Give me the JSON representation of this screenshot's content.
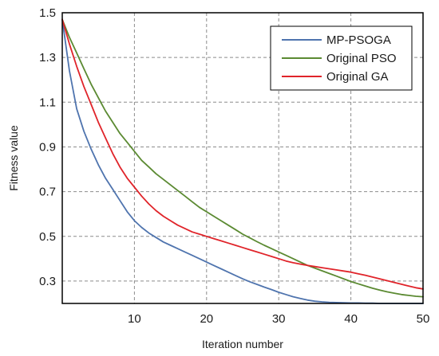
{
  "chart_data": {
    "type": "line",
    "title": "",
    "xlabel": "Iteration number",
    "ylabel": "Fitness value",
    "xlim": [
      0,
      50
    ],
    "ylim": [
      0.2,
      1.5
    ],
    "xticks": [
      10,
      20,
      30,
      40,
      50
    ],
    "xtick_labels": [
      "10",
      "20",
      "30",
      "40",
      "50"
    ],
    "yticks": [
      0.3,
      0.5,
      0.7,
      0.9,
      1.1,
      1.3,
      1.5
    ],
    "ytick_labels": [
      "0.3",
      "0.5",
      "0.7",
      "0.9",
      "1.1",
      "1.3",
      "1.5"
    ],
    "grid": true,
    "legend_position": "top-right",
    "x": [
      0,
      1,
      2,
      3,
      4,
      5,
      6,
      7,
      8,
      9,
      10,
      11,
      12,
      13,
      14,
      15,
      16,
      17,
      18,
      19,
      20,
      21,
      22,
      23,
      24,
      25,
      26,
      27,
      28,
      29,
      30,
      31,
      32,
      33,
      34,
      35,
      36,
      37,
      38,
      39,
      40,
      41,
      42,
      43,
      44,
      45,
      46,
      47,
      48,
      49,
      50
    ],
    "series": [
      {
        "name": "MP-PSOGA",
        "color": "#4f74ae",
        "values": [
          1.47,
          1.24,
          1.07,
          0.97,
          0.89,
          0.82,
          0.76,
          0.71,
          0.66,
          0.61,
          0.57,
          0.54,
          0.515,
          0.495,
          0.475,
          0.46,
          0.445,
          0.43,
          0.415,
          0.4,
          0.385,
          0.37,
          0.355,
          0.34,
          0.325,
          0.31,
          0.297,
          0.285,
          0.273,
          0.262,
          0.25,
          0.24,
          0.23,
          0.222,
          0.215,
          0.21,
          0.207,
          0.205,
          0.204,
          0.203,
          0.202,
          0.202,
          0.201,
          0.201,
          0.2,
          0.2,
          0.2,
          0.2,
          0.2,
          0.2,
          0.2
        ]
      },
      {
        "name": "Original PSO",
        "color": "#5b8a32",
        "values": [
          1.47,
          1.39,
          1.32,
          1.25,
          1.18,
          1.12,
          1.06,
          1.01,
          0.96,
          0.92,
          0.88,
          0.84,
          0.81,
          0.78,
          0.755,
          0.73,
          0.705,
          0.68,
          0.655,
          0.63,
          0.61,
          0.59,
          0.57,
          0.55,
          0.53,
          0.51,
          0.493,
          0.476,
          0.46,
          0.445,
          0.43,
          0.415,
          0.4,
          0.385,
          0.37,
          0.358,
          0.346,
          0.334,
          0.322,
          0.31,
          0.298,
          0.288,
          0.278,
          0.268,
          0.26,
          0.252,
          0.246,
          0.24,
          0.236,
          0.232,
          0.23
        ]
      },
      {
        "name": "Original GA",
        "color": "#e0242a",
        "values": [
          1.47,
          1.36,
          1.26,
          1.17,
          1.09,
          1.01,
          0.94,
          0.87,
          0.81,
          0.76,
          0.72,
          0.68,
          0.645,
          0.615,
          0.59,
          0.57,
          0.55,
          0.535,
          0.52,
          0.51,
          0.5,
          0.49,
          0.48,
          0.47,
          0.46,
          0.45,
          0.44,
          0.43,
          0.42,
          0.41,
          0.4,
          0.39,
          0.382,
          0.376,
          0.37,
          0.365,
          0.36,
          0.355,
          0.35,
          0.345,
          0.34,
          0.333,
          0.326,
          0.318,
          0.31,
          0.302,
          0.294,
          0.286,
          0.278,
          0.27,
          0.265
        ]
      }
    ]
  }
}
